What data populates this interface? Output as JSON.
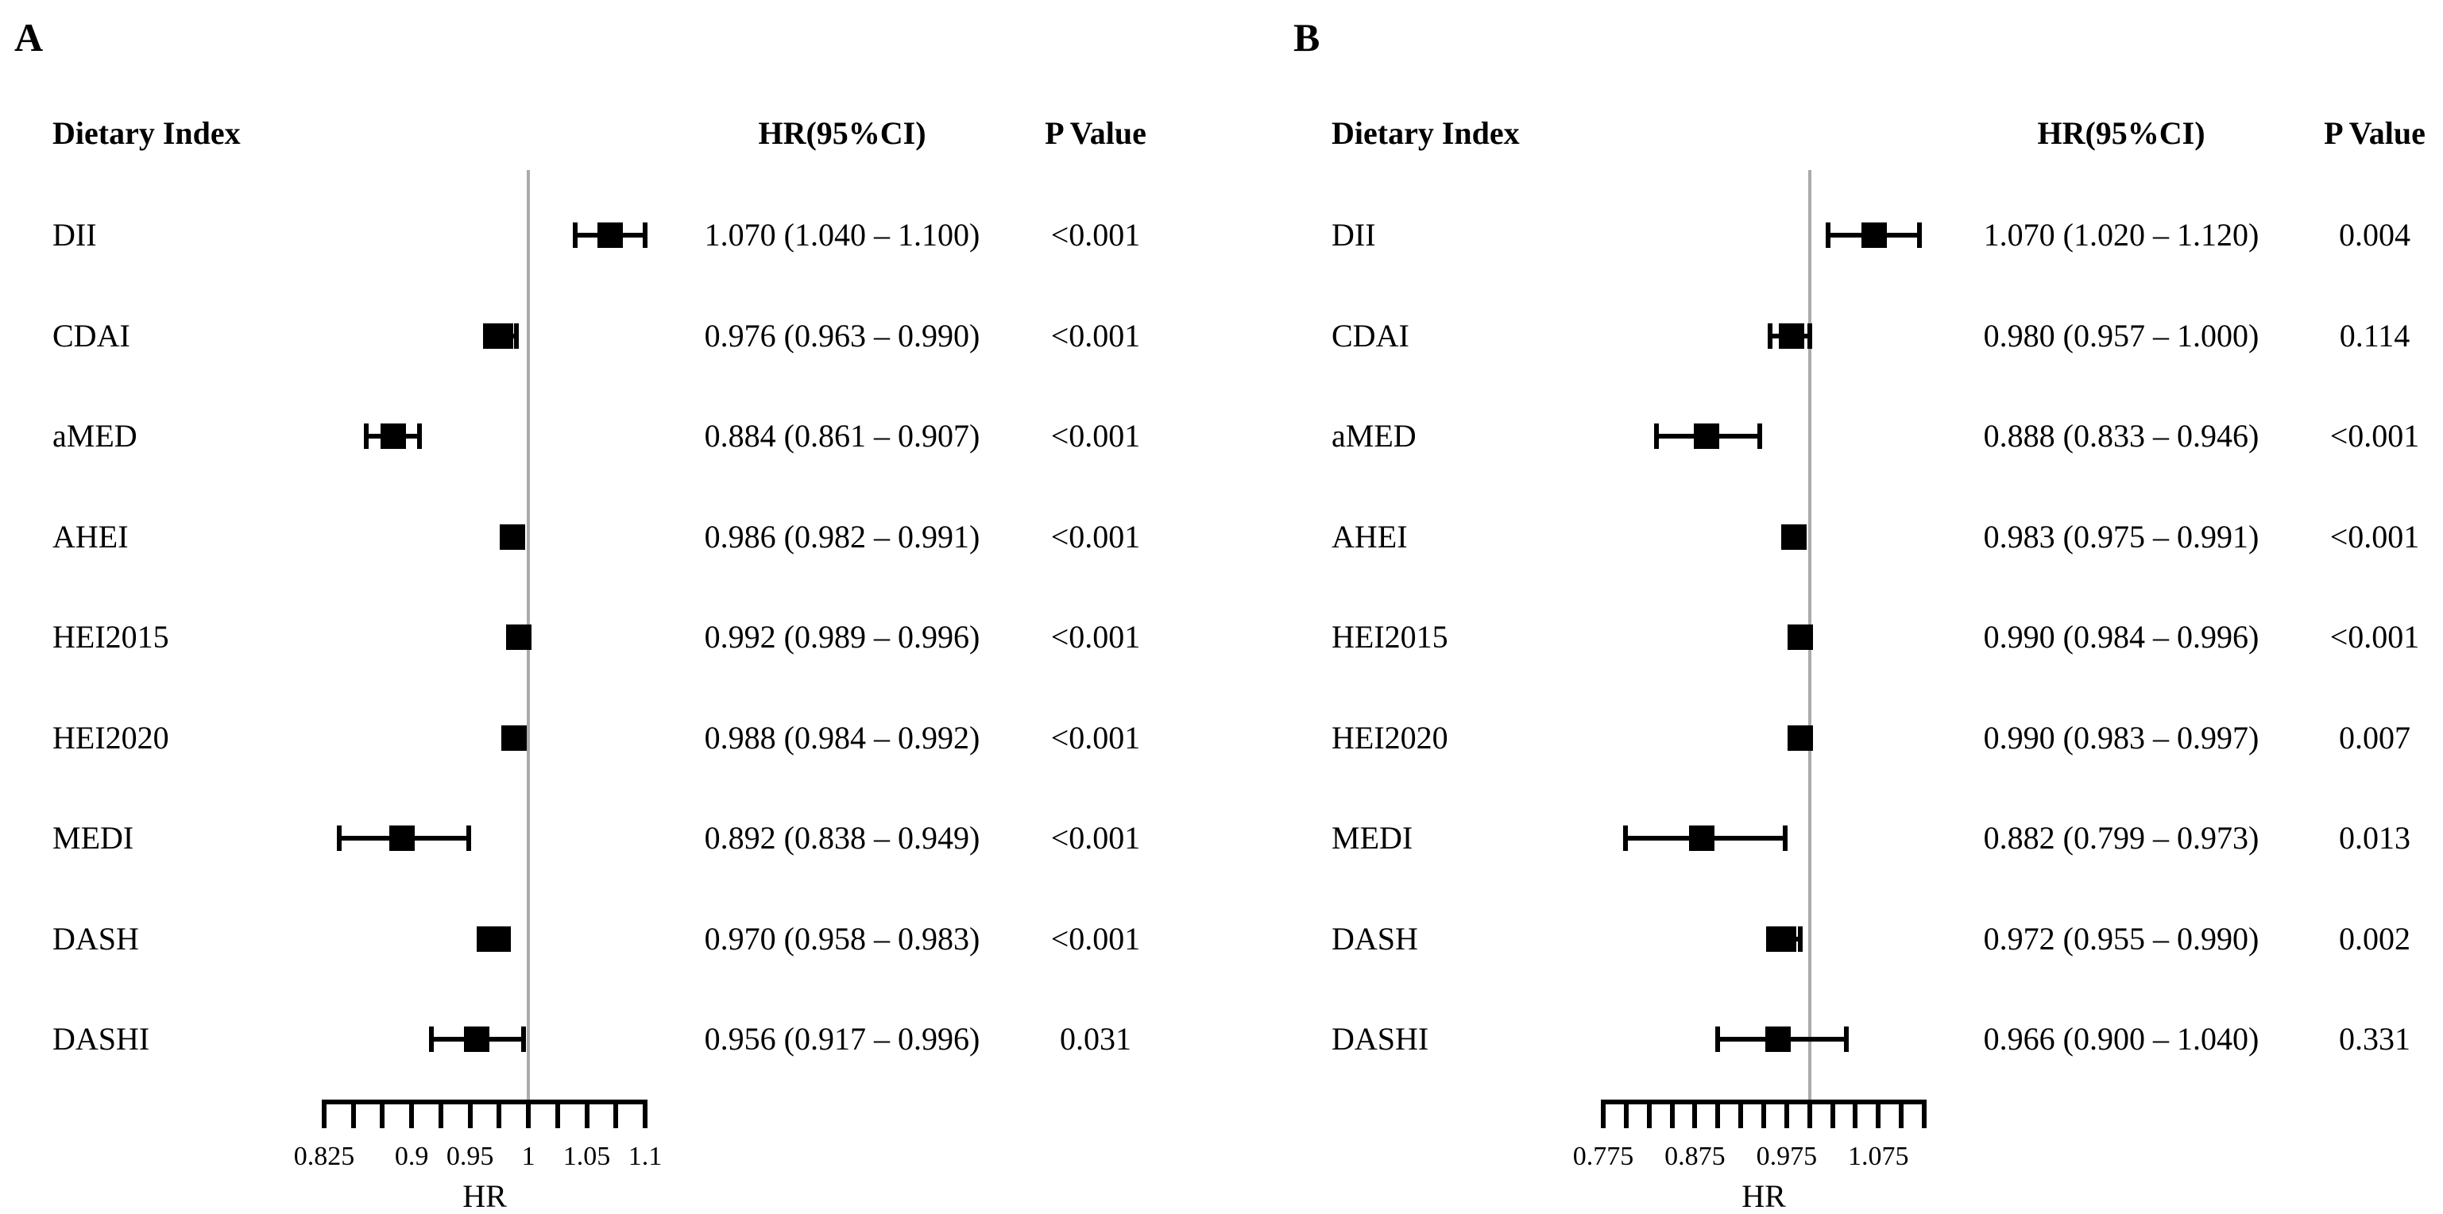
{
  "figure": {
    "background": "#ffffff",
    "text_color": "#000000",
    "reference_line_color": "#ababab",
    "marker_color": "#000000"
  },
  "chart_data": [
    {
      "type": "forest",
      "panel_label": "A",
      "columns": {
        "index": "Dietary Index",
        "estimate": "HR(95%CI)",
        "p": "P Value"
      },
      "xlabel": "HR",
      "x_axis": {
        "min": 0.825,
        "max": 1.1,
        "tick_step": 0.025,
        "labeled_ticks": [
          {
            "value": 0.825,
            "text": "0.825"
          },
          {
            "value": 0.9,
            "text": "0.9"
          },
          {
            "value": 0.95,
            "text": "0.95"
          },
          {
            "value": 1.0,
            "text": "1"
          },
          {
            "value": 1.05,
            "text": "1.05"
          },
          {
            "value": 1.1,
            "text": "1.1"
          }
        ]
      },
      "reference_line": 1.0,
      "rows": [
        {
          "index": "DII",
          "hr": 1.07,
          "ci_low": 1.04,
          "ci_high": 1.1,
          "estimate_text": "1.070 (1.040 – 1.100)",
          "p_text": "<0.001"
        },
        {
          "index": "CDAI",
          "hr": 0.976,
          "ci_low": 0.963,
          "ci_high": 0.99,
          "estimate_text": "0.976 (0.963 – 0.990)",
          "p_text": "<0.001"
        },
        {
          "index": "aMED",
          "hr": 0.884,
          "ci_low": 0.861,
          "ci_high": 0.907,
          "estimate_text": "0.884 (0.861 – 0.907)",
          "p_text": "<0.001"
        },
        {
          "index": "AHEI",
          "hr": 0.986,
          "ci_low": 0.982,
          "ci_high": 0.991,
          "estimate_text": "0.986 (0.982 – 0.991)",
          "p_text": "<0.001"
        },
        {
          "index": "HEI2015",
          "hr": 0.992,
          "ci_low": 0.989,
          "ci_high": 0.996,
          "estimate_text": "0.992 (0.989 – 0.996)",
          "p_text": "<0.001"
        },
        {
          "index": "HEI2020",
          "hr": 0.988,
          "ci_low": 0.984,
          "ci_high": 0.992,
          "estimate_text": "0.988 (0.984 – 0.992)",
          "p_text": "<0.001"
        },
        {
          "index": "MEDI",
          "hr": 0.892,
          "ci_low": 0.838,
          "ci_high": 0.949,
          "estimate_text": "0.892 (0.838 – 0.949)",
          "p_text": "<0.001"
        },
        {
          "index": "DASH",
          "hr": 0.97,
          "ci_low": 0.958,
          "ci_high": 0.983,
          "estimate_text": "0.970 (0.958 – 0.983)",
          "p_text": "<0.001"
        },
        {
          "index": "DASHI",
          "hr": 0.956,
          "ci_low": 0.917,
          "ci_high": 0.996,
          "estimate_text": "0.956 (0.917 – 0.996)",
          "p_text": "0.031"
        }
      ]
    },
    {
      "type": "forest",
      "panel_label": "B",
      "columns": {
        "index": "Dietary Index",
        "estimate": "HR(95%CI)",
        "p": "P Value"
      },
      "xlabel": "HR",
      "x_axis": {
        "min": 0.775,
        "max": 1.125,
        "tick_step": 0.025,
        "labeled_ticks": [
          {
            "value": 0.775,
            "text": "0.775"
          },
          {
            "value": 0.875,
            "text": "0.875"
          },
          {
            "value": 0.975,
            "text": "0.975"
          },
          {
            "value": 1.075,
            "text": "1.075"
          }
        ]
      },
      "reference_line": 1.0,
      "rows": [
        {
          "index": "DII",
          "hr": 1.07,
          "ci_low": 1.02,
          "ci_high": 1.12,
          "estimate_text": "1.070 (1.020 – 1.120)",
          "p_text": "0.004"
        },
        {
          "index": "CDAI",
          "hr": 0.98,
          "ci_low": 0.957,
          "ci_high": 1.0,
          "estimate_text": "0.980 (0.957 – 1.000)",
          "p_text": "0.114"
        },
        {
          "index": "aMED",
          "hr": 0.888,
          "ci_low": 0.833,
          "ci_high": 0.946,
          "estimate_text": "0.888 (0.833 – 0.946)",
          "p_text": "<0.001"
        },
        {
          "index": "AHEI",
          "hr": 0.983,
          "ci_low": 0.975,
          "ci_high": 0.991,
          "estimate_text": "0.983 (0.975 – 0.991)",
          "p_text": "<0.001"
        },
        {
          "index": "HEI2015",
          "hr": 0.99,
          "ci_low": 0.984,
          "ci_high": 0.996,
          "estimate_text": "0.990 (0.984 – 0.996)",
          "p_text": "<0.001"
        },
        {
          "index": "HEI2020",
          "hr": 0.99,
          "ci_low": 0.983,
          "ci_high": 0.997,
          "estimate_text": "0.990 (0.983 – 0.997)",
          "p_text": "0.007"
        },
        {
          "index": "MEDI",
          "hr": 0.882,
          "ci_low": 0.799,
          "ci_high": 0.973,
          "estimate_text": "0.882 (0.799 – 0.973)",
          "p_text": "0.013"
        },
        {
          "index": "DASH",
          "hr": 0.972,
          "ci_low": 0.955,
          "ci_high": 0.99,
          "estimate_text": "0.972 (0.955 – 0.990)",
          "p_text": "0.002"
        },
        {
          "index": "DASHI",
          "hr": 0.966,
          "ci_low": 0.9,
          "ci_high": 1.04,
          "estimate_text": "0.966 (0.900 – 1.040)",
          "p_text": "0.331"
        }
      ]
    }
  ]
}
